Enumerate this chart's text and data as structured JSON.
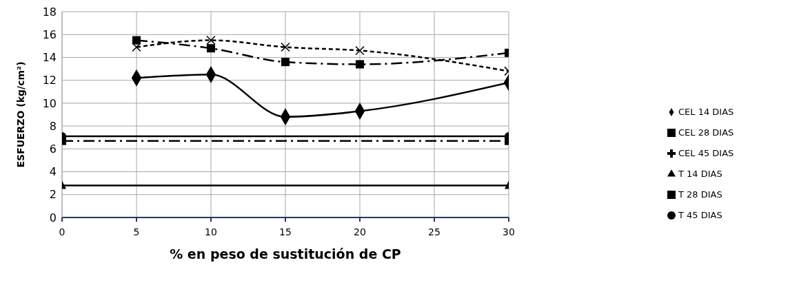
{
  "chart_data": {
    "type": "line",
    "xlabel": "% en peso de sustitución de CP",
    "ylabel": "ESFUERZO (kg/cm²)",
    "xlim": [
      0,
      30
    ],
    "xticks": [
      0,
      5,
      10,
      15,
      20,
      25,
      30
    ],
    "ylim": [
      0,
      18
    ],
    "yticks": [
      0,
      2,
      4,
      6,
      8,
      10,
      12,
      14,
      16,
      18
    ],
    "grid": true,
    "legend": "right",
    "series": [
      {
        "name": "CEL 14 DIAS",
        "color": "#000000",
        "x": [
          5,
          10,
          15,
          20,
          30
        ],
        "values": [
          12.2,
          12.5,
          8.8,
          9.3,
          11.8
        ],
        "marker": "diamond",
        "line_style": "solid"
      },
      {
        "name": "CEL 28 DIAS",
        "color": "#000000",
        "x": [
          5,
          10,
          15,
          20,
          30
        ],
        "values": [
          15.5,
          14.8,
          13.6,
          13.4,
          14.4
        ],
        "marker": "square",
        "line_style": "dashed"
      },
      {
        "name": "CEL 45 DIAS",
        "color": "#000000",
        "x": [
          5,
          10,
          15,
          20,
          30
        ],
        "values": [
          14.9,
          15.5,
          14.9,
          14.6,
          12.8
        ],
        "marker": "cross",
        "line_style": "dotted"
      },
      {
        "name": "T 14 DIAS",
        "color": "#000000",
        "x": [
          0,
          30
        ],
        "values": [
          2.8,
          2.8
        ],
        "marker": "triangle",
        "line_style": "solid"
      },
      {
        "name": "T 28 DIAS",
        "color": "#000000",
        "x": [
          0,
          30
        ],
        "values": [
          6.7,
          6.7
        ],
        "marker": "square",
        "line_style": "dashed"
      },
      {
        "name": "T 45 DIAS",
        "color": "#000000",
        "x": [
          0,
          30
        ],
        "values": [
          7.1,
          7.1
        ],
        "marker": "circle",
        "line_style": "solid"
      }
    ]
  }
}
